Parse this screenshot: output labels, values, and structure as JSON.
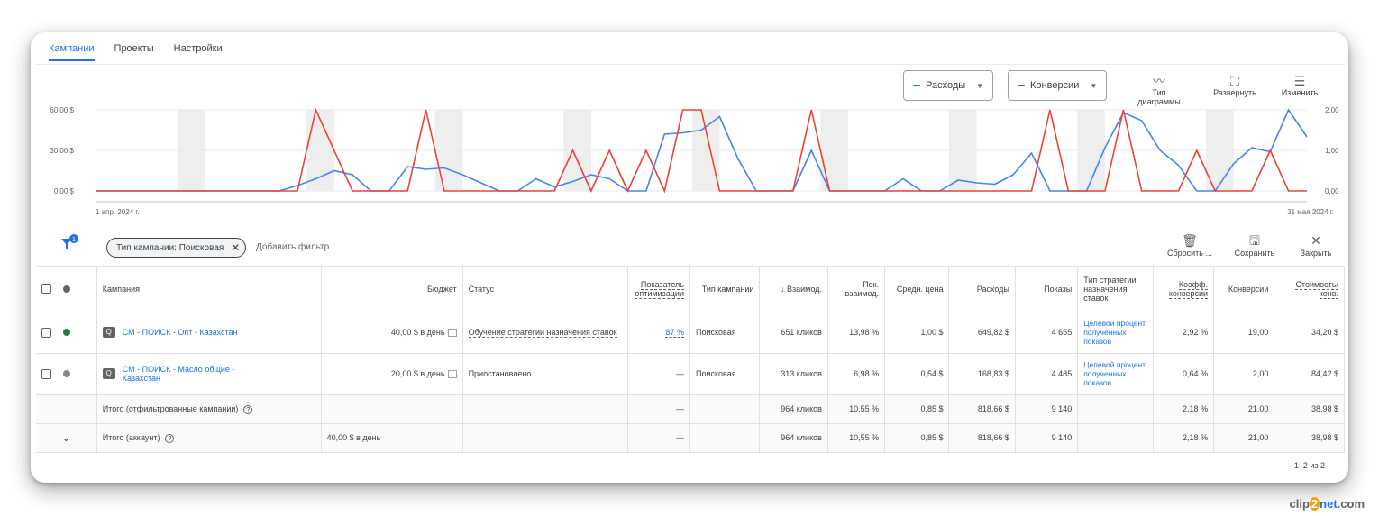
{
  "tabs": [
    "Кампании",
    "Проекты",
    "Настройки"
  ],
  "chart_controls": {
    "metric1": "Расходы",
    "metric1_color": "#1a73e8",
    "metric2": "Конверсии",
    "metric2_color": "#d93025",
    "chart_type": "Тип диаграммы",
    "expand": "Развернуть",
    "edit": "Изменить"
  },
  "chart_data": {
    "type": "line",
    "x_start_label": "1 апр. 2024 г.",
    "x_end_label": "31 мая 2024 г.",
    "left_ticks": [
      "60,00 $",
      "30,00 $",
      "0,00 $"
    ],
    "right_ticks": [
      "2,00",
      "1,00",
      "0,00"
    ],
    "left_ylim": [
      0,
      60
    ],
    "right_ylim": [
      0,
      2
    ],
    "series": [
      {
        "name": "Расходы",
        "color": "#4285f4",
        "values": [
          0,
          0,
          0,
          0,
          0,
          0,
          0,
          0,
          0,
          0,
          0,
          4,
          9,
          15,
          12,
          0,
          0,
          18,
          16,
          17,
          12,
          6,
          0,
          0,
          9,
          3,
          7,
          12,
          9,
          0,
          0,
          42,
          43,
          45,
          55,
          24,
          0,
          0,
          0,
          30,
          0,
          0,
          0,
          0,
          9,
          0,
          0,
          8,
          6,
          5,
          12,
          28,
          0,
          0,
          0,
          32,
          58,
          52,
          30,
          19,
          0,
          0,
          20,
          32,
          29,
          60,
          40
        ]
      },
      {
        "name": "Конверсии",
        "color": "#ea4335",
        "values": [
          0,
          0,
          0,
          0,
          0,
          0,
          0,
          0,
          0,
          0,
          0,
          0,
          2,
          1,
          0,
          0,
          0,
          0,
          2,
          0,
          0,
          0,
          0,
          0,
          0,
          0,
          1,
          0,
          1,
          0,
          1,
          0,
          2,
          2,
          0,
          0,
          0,
          0,
          0,
          2,
          0,
          0,
          0,
          0,
          0,
          0,
          0,
          0,
          0,
          0,
          0,
          0,
          2,
          0,
          0,
          0,
          2,
          0,
          0,
          0,
          1,
          0,
          0,
          0,
          1,
          0,
          0
        ]
      }
    ]
  },
  "filter": {
    "chip": "Тип кампании: Поисковая",
    "add": "Добавить фильтр",
    "reset": "Сбросить ...",
    "save": "Сохранить",
    "close": "Закрыть",
    "badge": "1"
  },
  "table": {
    "headers": {
      "campaign": "Кампания",
      "budget": "Бюджет",
      "status": "Статус",
      "score": "Показатель оптимизации",
      "type": "Тип кампании",
      "interactions": "↓ Взаимод.",
      "int_rate": "Пок. взаимод.",
      "avg_cost": "Средн. цена",
      "cost": "Расходы",
      "impr": "Показы",
      "strategy": "Тип стратегии назначения ставок",
      "conv_rate": "Коэфф. конверсии",
      "conversions": "Конверсии",
      "cost_conv": "Стоимость/ конв."
    },
    "rows": [
      {
        "status_dot": "#188038",
        "name": "СМ - ПОИСК - Опт - Казахстан",
        "budget": "40,00 $ в день",
        "status": "Обучение стратегии назначения ставок",
        "score": "87 %",
        "type": "Поисковая",
        "interactions": "651 кликов",
        "int_rate": "13,98 %",
        "avg_cost": "1,00 $",
        "cost": "649,82 $",
        "impr": "4 655",
        "strategy": "Целевой процент полученных показов",
        "conv_rate": "2,92 %",
        "conversions": "19,00",
        "cost_conv": "34,20 $"
      },
      {
        "status_dot": "#80868b",
        "name": "СМ - ПОИСК - Масло общие - Казахстан",
        "budget": "20,00 $ в день",
        "status": "Приостановлено",
        "score": "—",
        "type": "Поисковая",
        "interactions": "313 кликов",
        "int_rate": "6,98 %",
        "avg_cost": "0,54 $",
        "cost": "168,83 $",
        "impr": "4 485",
        "strategy": "Целевой процент полученных показов",
        "conv_rate": "0,64 %",
        "conversions": "2,00",
        "cost_conv": "84,42 $"
      }
    ],
    "totals": [
      {
        "label": "Итого (отфильтрованные кампании)",
        "budget": "",
        "score": "—",
        "interactions": "964 кликов",
        "int_rate": "10,55 %",
        "avg_cost": "0,85 $",
        "cost": "818,66 $",
        "impr": "9 140",
        "conv_rate": "2,18 %",
        "conversions": "21,00",
        "cost_conv": "38,98 $"
      },
      {
        "label": "Итого (аккаунт)",
        "budget": "40,00 $ в день",
        "score": "—",
        "interactions": "964 кликов",
        "int_rate": "10,55 %",
        "avg_cost": "0,85 $",
        "cost": "818,66 $",
        "impr": "9 140",
        "conv_rate": "2,18 %",
        "conversions": "21,00",
        "cost_conv": "38,98 $"
      }
    ]
  },
  "pager": "1–2 из 2",
  "watermark": {
    "a": "clip",
    "b": "2",
    "c": "net",
    "d": ".com"
  }
}
